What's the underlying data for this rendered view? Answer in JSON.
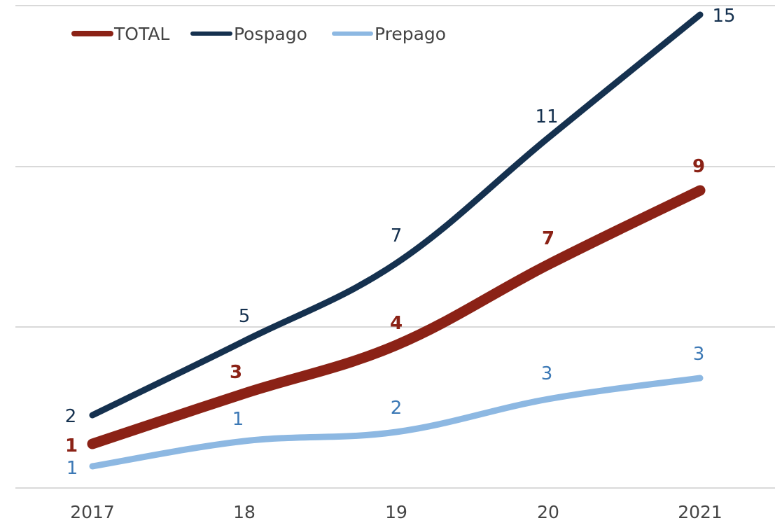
{
  "chart_data": {
    "type": "line",
    "categories": [
      "2017",
      "18",
      "19",
      "20",
      "2021"
    ],
    "ylim": [
      0,
      15
    ],
    "grid": true,
    "legend": "top-left",
    "series": [
      {
        "name": "TOTAL",
        "color": "#8B2216",
        "values": [
          1,
          3,
          4,
          7,
          9
        ],
        "labels": [
          "1",
          "3",
          "4",
          "7",
          "9"
        ],
        "bold_labels": true
      },
      {
        "name": "Pospago",
        "color": "#15314F",
        "values": [
          2,
          5,
          7,
          11,
          15
        ],
        "labels": [
          "2",
          "5",
          "7",
          "11",
          "15"
        ],
        "bold_labels": false
      },
      {
        "name": "Prepago",
        "color": "#8DB8E2",
        "label_color": "#3B78B5",
        "values": [
          1,
          1,
          2,
          3,
          3
        ],
        "labels": [
          "1",
          "1",
          "2",
          "3",
          "3"
        ],
        "bold_labels": false
      }
    ]
  }
}
